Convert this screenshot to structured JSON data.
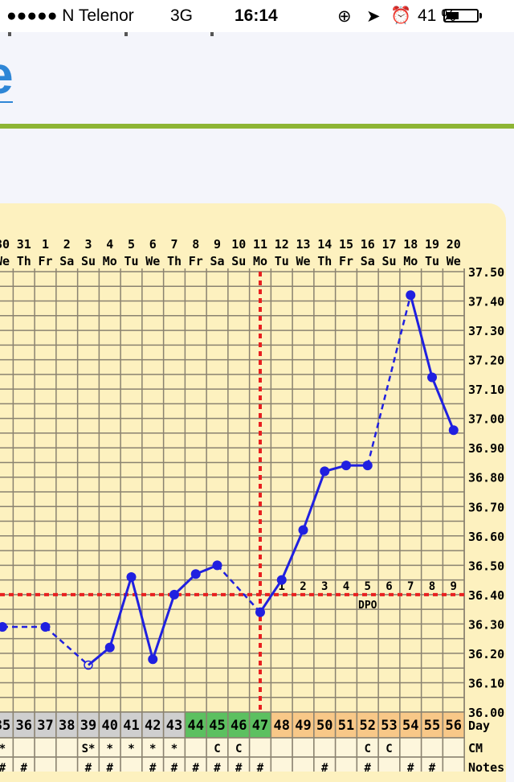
{
  "status_bar": {
    "carrier": "●●●●● N Telenor",
    "network": "3G",
    "time": "16:14",
    "battery_percent": "41 %",
    "battery_level": 0.41,
    "icons": [
      "rotation-lock-icon",
      "location-arrow-icon",
      "alarm-icon",
      "battery-icon"
    ]
  },
  "page": {
    "logo_fragment": "e",
    "accent_color": "#8db534",
    "link_color": "#2e86d6"
  },
  "chart_data": {
    "type": "line",
    "x_dates": [
      "30",
      "31",
      "1",
      "2",
      "3",
      "4",
      "5",
      "6",
      "7",
      "8",
      "9",
      "10",
      "11",
      "12",
      "13",
      "14",
      "15",
      "16",
      "17",
      "18",
      "19",
      "20"
    ],
    "x_weekdays": [
      "We",
      "Th",
      "Fr",
      "Sa",
      "Su",
      "Mo",
      "Tu",
      "We",
      "Th",
      "Fr",
      "Sa",
      "Su",
      "Mo",
      "Tu",
      "We",
      "Th",
      "Fr",
      "Sa",
      "Su",
      "Mo",
      "Tu",
      "We"
    ],
    "temperatures": [
      36.29,
      null,
      36.29,
      null,
      36.16,
      36.22,
      36.46,
      36.18,
      36.4,
      36.47,
      36.5,
      null,
      36.34,
      36.45,
      36.62,
      36.82,
      36.84,
      36.84,
      null,
      37.42,
      37.14,
      36.96
    ],
    "open_point_dates": [
      "3"
    ],
    "ylim": [
      36.0,
      37.5
    ],
    "y_ticks": [
      "37.50",
      "37.40",
      "37.30",
      "37.20",
      "37.10",
      "37.00",
      "36.90",
      "36.80",
      "36.70",
      "36.60",
      "36.50",
      "36.40",
      "36.30",
      "36.20",
      "36.10",
      "36.00"
    ],
    "coverline": 36.4,
    "ovulation_date": "11",
    "dpo_labels": [
      "1",
      "2",
      "3",
      "4",
      "5",
      "6",
      "7",
      "8",
      "9"
    ],
    "dpo_title": "DPO",
    "grid": true,
    "line_color": "#2020e0",
    "coverline_color": "#e82020",
    "cycle_days": [
      "35",
      "36",
      "37",
      "38",
      "39",
      "40",
      "41",
      "42",
      "43",
      "44",
      "45",
      "46",
      "47",
      "48",
      "49",
      "50",
      "51",
      "52",
      "53",
      "54",
      "55",
      "56"
    ],
    "cycle_day_phase": [
      "gray",
      "gray",
      "gray",
      "gray",
      "gray",
      "gray",
      "gray",
      "gray",
      "gray",
      "green",
      "green",
      "green",
      "green",
      "orange",
      "orange",
      "orange",
      "orange",
      "orange",
      "orange",
      "orange",
      "orange",
      "orange"
    ],
    "phase_colors": {
      "gray": "#cfcfcf",
      "green": "#5cc060",
      "orange": "#f8c888"
    },
    "cm": [
      "*",
      "",
      "",
      "",
      "S*",
      "*",
      "*",
      "*",
      "*",
      "",
      "C",
      "C",
      "",
      "",
      "",
      "",
      "",
      "C",
      "C",
      "",
      "",
      ""
    ],
    "notes": [
      "#",
      "#",
      "",
      "",
      "#",
      "#",
      "",
      "#",
      "#",
      "#",
      "#",
      "#",
      "#",
      "",
      "",
      "#",
      "",
      "#",
      "",
      "#",
      "#",
      ""
    ],
    "row_labels": {
      "day": "Day",
      "cm": "CM",
      "notes": "Notes"
    }
  }
}
